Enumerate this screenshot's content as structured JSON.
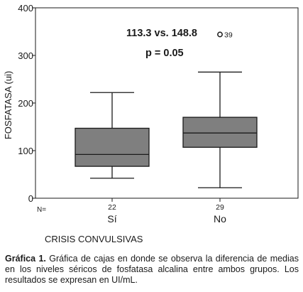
{
  "chart_data": {
    "type": "boxplot",
    "ylabel": "FOSFATASA (ui)",
    "xlabel": "CRISIS CONVULSIVAS",
    "ylim": [
      0,
      400
    ],
    "yticks": [
      0,
      100,
      200,
      300,
      400
    ],
    "n_label": "N=",
    "categories": [
      "Sí",
      "No"
    ],
    "n": [
      "22",
      "29"
    ],
    "boxes": [
      {
        "whisker_low": 42,
        "q1": 67,
        "median": 92,
        "q3": 147,
        "whisker_high": 222
      },
      {
        "whisker_low": 22,
        "q1": 107,
        "median": 137,
        "q3": 170,
        "whisker_high": 265
      }
    ],
    "outliers": [
      {
        "category": "No",
        "value": 350,
        "label": "39"
      }
    ],
    "annotations": [
      "113.3 vs. 148.8",
      "p = 0.05"
    ],
    "colors": {
      "box_fill": "#7f7f7f",
      "line": "#1a1a1a"
    }
  },
  "caption": {
    "label": "Gráfica 1.",
    "text": " Gráfica de cajas en donde se observa la diferencia de medias en los niveles séricos de fosfatasa alcalina entre ambos grupos. Los resultados se expresan en UI/mL."
  }
}
